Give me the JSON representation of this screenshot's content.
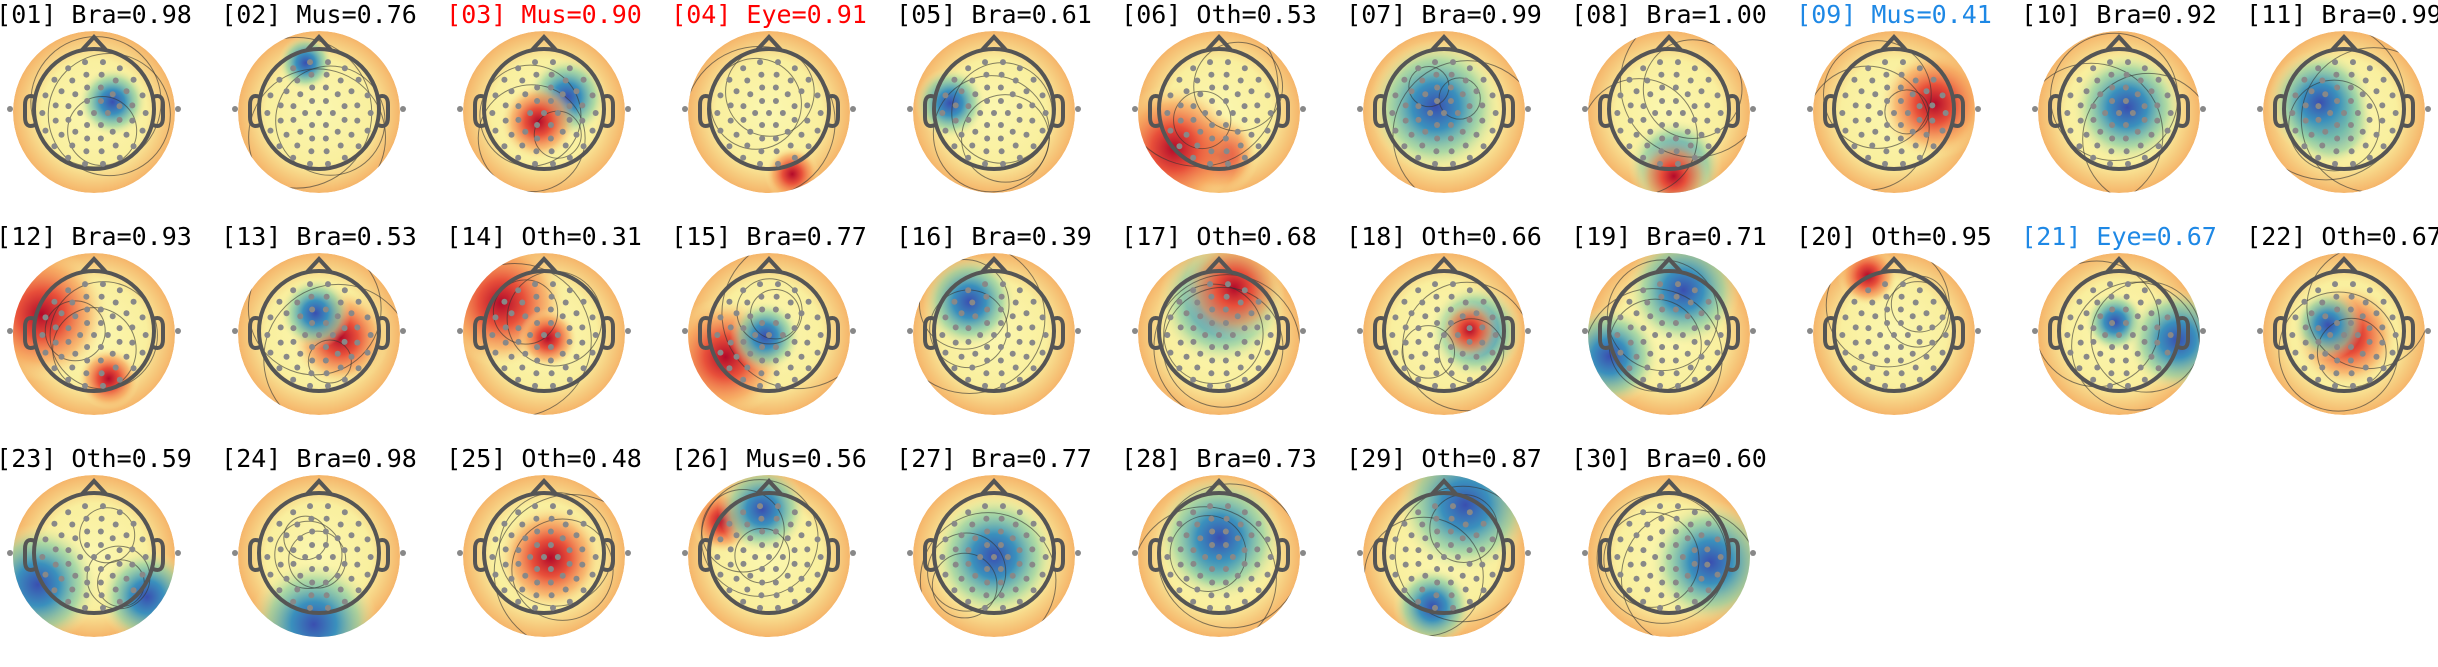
{
  "components": [
    {
      "title": "[01] Bra=0.98",
      "color": "#000000"
    },
    {
      "title": "[02] Mus=0.76",
      "color": "#000000"
    },
    {
      "title": "[03] Mus=0.90",
      "color": "#ff0000"
    },
    {
      "title": "[04] Eye=0.91",
      "color": "#ff0000"
    },
    {
      "title": "[05] Bra=0.61",
      "color": "#000000"
    },
    {
      "title": "[06] Oth=0.53",
      "color": "#000000"
    },
    {
      "title": "[07] Bra=0.99",
      "color": "#000000"
    },
    {
      "title": "[08] Bra=1.00",
      "color": "#000000"
    },
    {
      "title": "[09] Mus=0.41",
      "color": "#1e88e5"
    },
    {
      "title": "[10] Bra=0.92",
      "color": "#000000"
    },
    {
      "title": "[11] Bra=0.99",
      "color": "#000000"
    },
    {
      "title": "[12] Bra=0.93",
      "color": "#000000"
    },
    {
      "title": "[13] Bra=0.53",
      "color": "#000000"
    },
    {
      "title": "[14] Oth=0.31",
      "color": "#000000"
    },
    {
      "title": "[15] Bra=0.77",
      "color": "#000000"
    },
    {
      "title": "[16] Bra=0.39",
      "color": "#000000"
    },
    {
      "title": "[17] Oth=0.68",
      "color": "#000000"
    },
    {
      "title": "[18] Oth=0.66",
      "color": "#000000"
    },
    {
      "title": "[19] Bra=0.71",
      "color": "#000000"
    },
    {
      "title": "[20] Oth=0.95",
      "color": "#000000"
    },
    {
      "title": "[21] Eye=0.67",
      "color": "#1e88e5"
    },
    {
      "title": "[22] Oth=0.67",
      "color": "#000000"
    },
    {
      "title": "[23] Oth=0.59",
      "color": "#000000"
    },
    {
      "title": "[24] Bra=0.98",
      "color": "#000000"
    },
    {
      "title": "[25] Oth=0.48",
      "color": "#000000"
    },
    {
      "title": "[26] Mus=0.56",
      "color": "#000000"
    },
    {
      "title": "[27] Bra=0.77",
      "color": "#000000"
    },
    {
      "title": "[28] Bra=0.73",
      "color": "#000000"
    },
    {
      "title": "[29] Oth=0.87",
      "color": "#000000"
    },
    {
      "title": "[30] Bra=0.60",
      "color": "#000000"
    }
  ]
}
